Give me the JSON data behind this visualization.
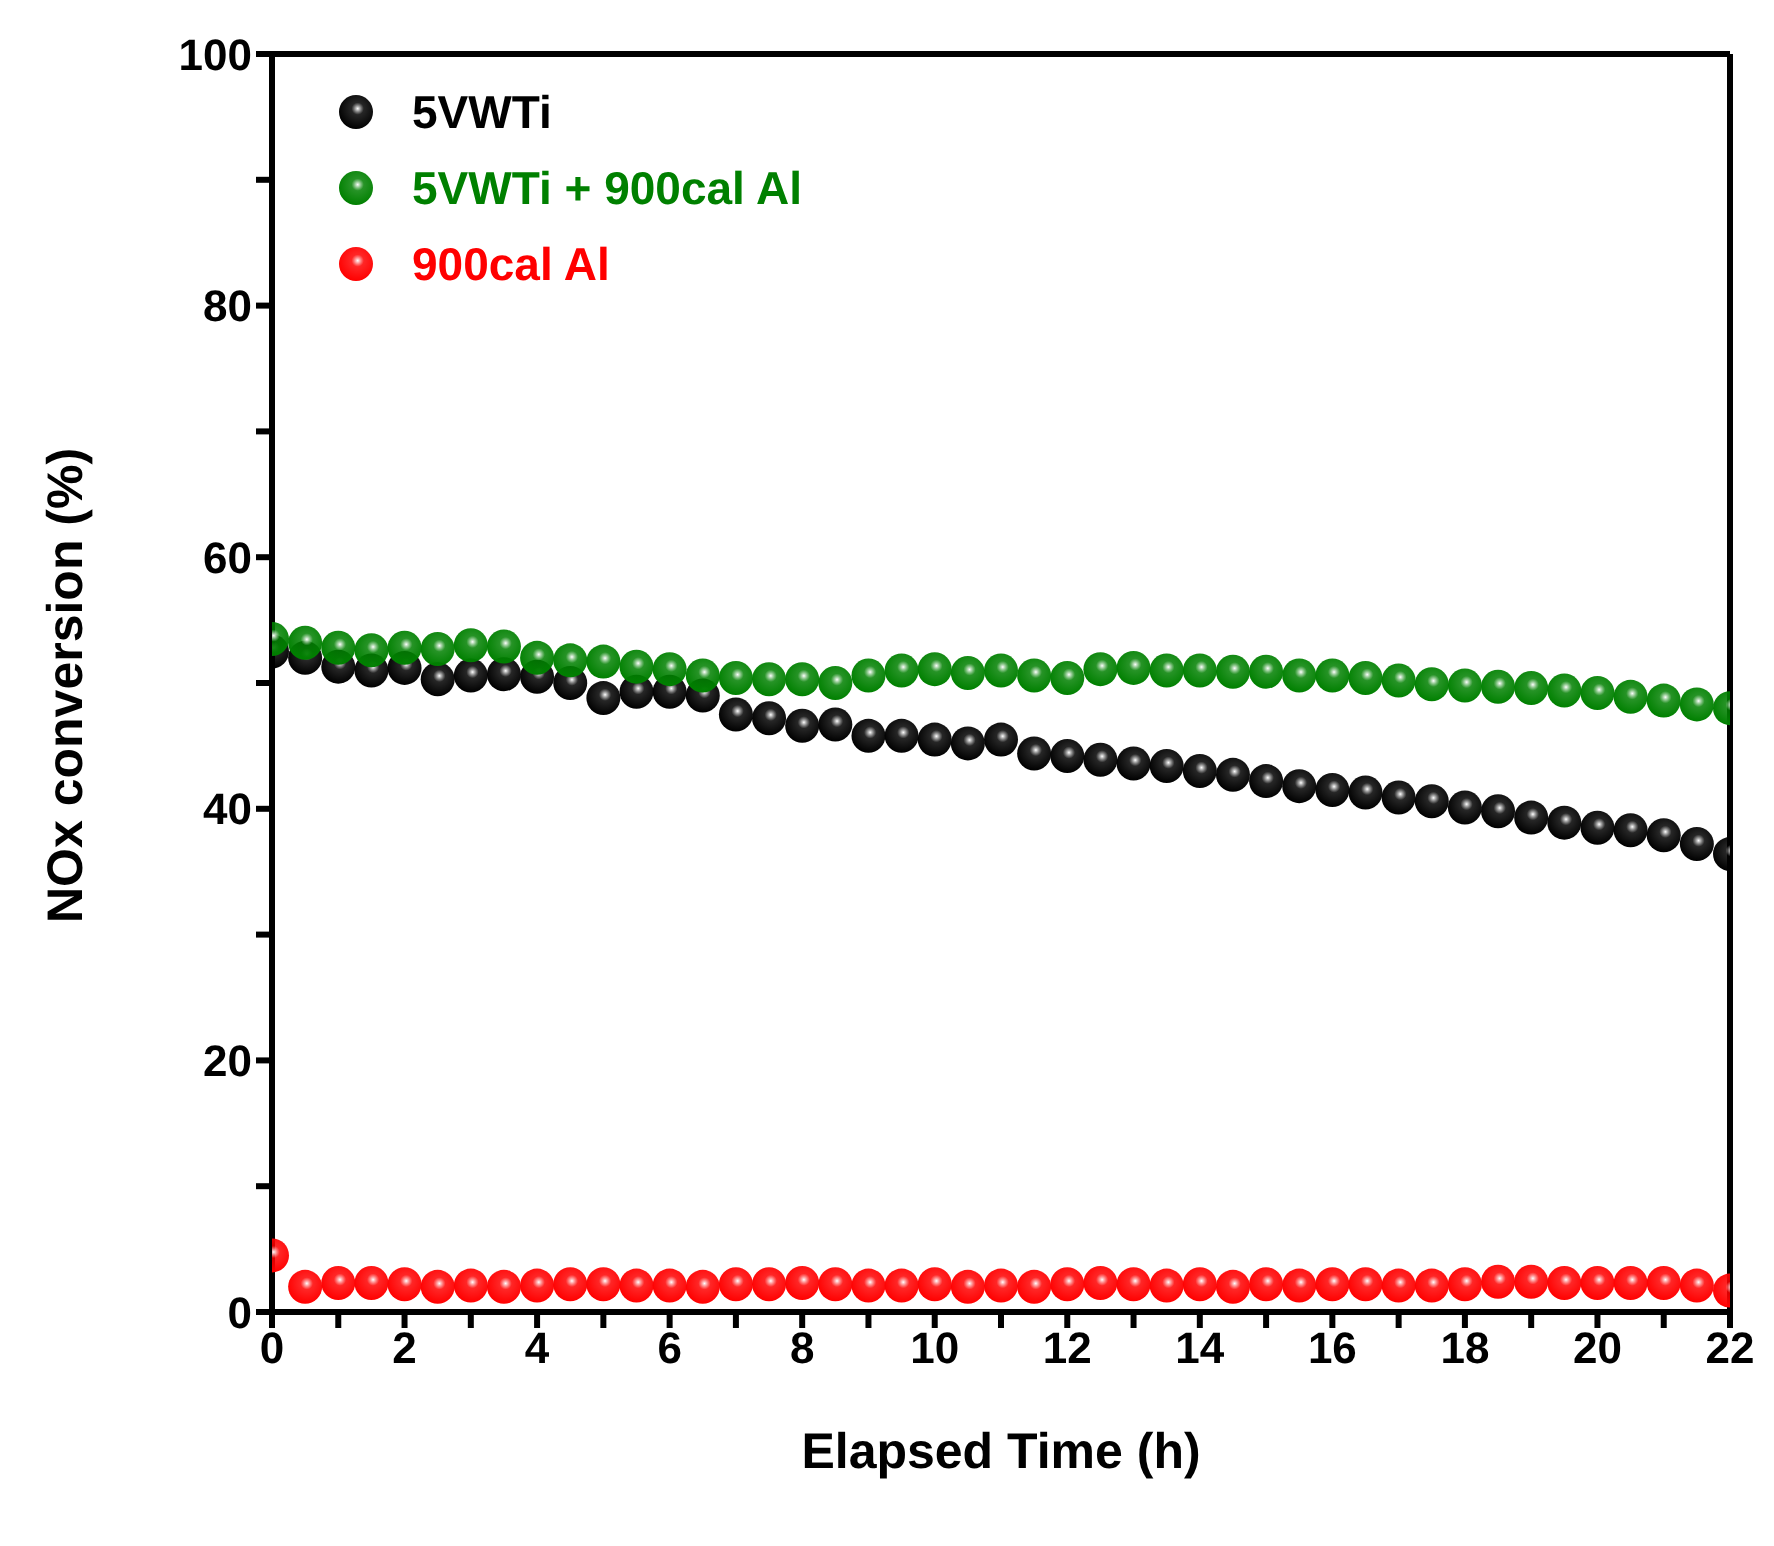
{
  "chart_data": {
    "type": "scatter",
    "xlabel": "Elapsed Time (h)",
    "ylabel": "NOx conversion (%)",
    "x": [
      0,
      0.5,
      1,
      1.5,
      2,
      2.5,
      3,
      3.5,
      4,
      4.5,
      5,
      5.5,
      6,
      6.5,
      7,
      7.5,
      8,
      8.5,
      9,
      9.5,
      10,
      10.5,
      11,
      11.5,
      12,
      12.5,
      13,
      13.5,
      14,
      14.5,
      15,
      15.5,
      16,
      16.5,
      17,
      17.5,
      18,
      18.5,
      19,
      19.5,
      20,
      20.5,
      21,
      21.5,
      22
    ],
    "series": [
      {
        "name": "5VWTi",
        "color": "#000000",
        "values": [
          52.5,
          52,
          51.3,
          51,
          51.2,
          50.3,
          50.6,
          50.7,
          50.5,
          50,
          48.8,
          49.3,
          49.3,
          49,
          47.5,
          47.2,
          46.6,
          46.7,
          45.8,
          45.8,
          45.5,
          45.2,
          45.5,
          44.4,
          44.2,
          43.9,
          43.6,
          43.4,
          43,
          42.7,
          42.2,
          41.8,
          41.5,
          41.3,
          40.9,
          40.6,
          40.1,
          39.8,
          39.3,
          38.9,
          38.5,
          38.3,
          37.9,
          37.2,
          36.4
        ]
      },
      {
        "name": "5VWTi + 900cal Al",
        "color": "#008000",
        "values": [
          53.5,
          53.2,
          52.8,
          52.6,
          52.8,
          52.7,
          53,
          52.9,
          52,
          51.8,
          51.7,
          51.3,
          51.1,
          50.6,
          50.4,
          50.3,
          50.3,
          50,
          50.6,
          51,
          51.1,
          50.8,
          51,
          50.6,
          50.4,
          51.1,
          51.2,
          51,
          51,
          50.9,
          50.9,
          50.6,
          50.6,
          50.4,
          50.2,
          49.9,
          49.8,
          49.7,
          49.6,
          49.4,
          49.2,
          48.9,
          48.6,
          48.3,
          48
        ]
      },
      {
        "name": "900cal Al",
        "color": "#ff0000",
        "values": [
          4.5,
          2,
          2.3,
          2.3,
          2.2,
          2,
          2.1,
          2,
          2.1,
          2.2,
          2.2,
          2.1,
          2.1,
          2,
          2.2,
          2.2,
          2.3,
          2.2,
          2.1,
          2.1,
          2.2,
          2,
          2.1,
          2,
          2.2,
          2.3,
          2.2,
          2.1,
          2.2,
          2,
          2.2,
          2.1,
          2.2,
          2.2,
          2.1,
          2.1,
          2.2,
          2.4,
          2.4,
          2.3,
          2.3,
          2.3,
          2.3,
          2.1,
          1.7
        ]
      }
    ],
    "xlim": [
      0,
      22
    ],
    "xticks": [
      0,
      {
        "value": 1,
        "label": null
      },
      2,
      {
        "value": 3,
        "label": null
      },
      4,
      {
        "value": 5,
        "label": null
      },
      6,
      {
        "value": 7,
        "label": null
      },
      8,
      {
        "value": 9,
        "label": null
      },
      10,
      {
        "value": 11,
        "label": null
      },
      12,
      {
        "value": 13,
        "label": null
      },
      14,
      {
        "value": 15,
        "label": null
      },
      16,
      {
        "value": 17,
        "label": null
      },
      18,
      {
        "value": 19,
        "label": null
      },
      20,
      {
        "value": 21,
        "label": null
      },
      22
    ],
    "ylim": [
      0,
      100
    ],
    "yticks": [
      0,
      {
        "value": 10,
        "label": null
      },
      20,
      {
        "value": 30,
        "label": null
      },
      40,
      {
        "value": 50,
        "label": null
      },
      60,
      {
        "value": 70,
        "label": null
      },
      80,
      {
        "value": 90,
        "label": null
      },
      100
    ],
    "grid": false,
    "legend": "top left",
    "marker": "circle"
  }
}
